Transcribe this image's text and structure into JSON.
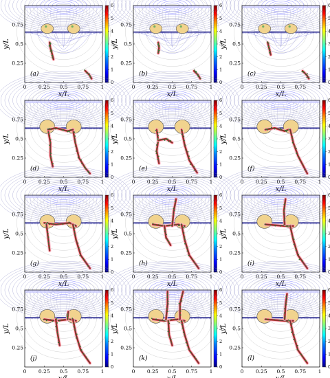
{
  "figure": {
    "panel_labels": [
      "(a)",
      "(b)",
      "(c)",
      "(d)",
      "(e)",
      "(f)",
      "(g)",
      "(h)",
      "(i)",
      "(j)",
      "(k)",
      "(l)"
    ],
    "x_axis_label": "x/L",
    "y_axis_label": "y/L",
    "x_ticks": [
      "0",
      "0.25",
      "0.5",
      "0.75",
      "1"
    ],
    "y_ticks": [
      "0.25",
      "0.5",
      "0.75"
    ],
    "colorbar_ticks": [
      "0",
      "1",
      "2",
      "3",
      "4",
      "5",
      "6"
    ],
    "colorbar_colors": [
      "#00007f",
      "#0000ff",
      "#0080ff",
      "#00ffff",
      "#80ff80",
      "#ffff00",
      "#ff8000",
      "#ff0000",
      "#7f0000"
    ]
  }
}
